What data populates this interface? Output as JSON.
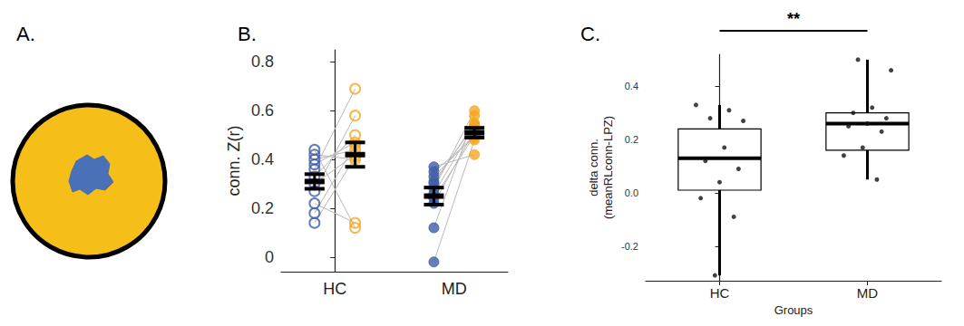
{
  "chart_data": [
    {
      "title": "A.",
      "type": "illustration",
      "colors": [
        "#f6be18",
        "#4a70b8"
      ]
    },
    {
      "title": "B.",
      "type": "paired_scatter",
      "categories": [
        "HC",
        "MD"
      ],
      "y_label": "conn. Z(r)",
      "ylim": [
        -0.06,
        0.85
      ],
      "yticks": [
        0,
        0.2,
        0.4,
        0.6,
        0.8
      ],
      "grid": false,
      "groups": [
        {
          "category": "HC",
          "marker": "open",
          "series": [
            {
              "color": "#3f5ca8",
              "values": [
                0.36,
                0.27,
                0.18,
                0.14,
                0.33,
                0.3,
                0.38,
                0.4,
                0.42,
                0.22,
                0.44
              ],
              "mean": 0.31,
              "error": 0.03
            },
            {
              "color": "#f5a623",
              "values": [
                0.69,
                0.58,
                0.46,
                0.41,
                0.5,
                0.42,
                0.47,
                0.44,
                0.4,
                0.14,
                0.12
              ],
              "mean": 0.42,
              "error": 0.05
            }
          ]
        },
        {
          "category": "MD",
          "marker": "filled",
          "series": [
            {
              "color": "#3f5ca8",
              "values": [
                -0.02,
                0.12,
                0.28,
                0.22,
                0.26,
                0.24,
                0.3,
                0.31,
                0.33,
                0.35,
                0.37
              ],
              "mean": 0.25,
              "error": 0.035
            },
            {
              "color": "#f5a623",
              "values": [
                0.48,
                0.58,
                0.6,
                0.52,
                0.54,
                0.5,
                0.55,
                0.54,
                0.5,
                0.49,
                0.42
              ],
              "mean": 0.51,
              "error": 0.02
            }
          ]
        }
      ]
    },
    {
      "title": "C.",
      "type": "boxplot",
      "categories": [
        "HC",
        "MD"
      ],
      "x_label": "Groups",
      "y_label": "delta conn.\n(meanRLconn-LPZ)",
      "ylim": [
        -0.33,
        0.52
      ],
      "yticks": [
        -0.2,
        {
          "value": 0,
          "label": "0.0"
        },
        0.2,
        0.4
      ],
      "grid": false,
      "boxes": [
        [
          -0.31,
          0.01,
          0.13,
          0.24,
          0.33
        ],
        [
          0.05,
          0.16,
          0.26,
          0.3,
          0.5
        ]
      ],
      "points": [
        [
          0.33,
          0.31,
          0.28,
          0.27,
          0.17,
          0.12,
          0.09,
          0.04,
          -0.02,
          -0.09,
          -0.31
        ],
        [
          0.5,
          0.46,
          0.32,
          0.3,
          0.28,
          0.26,
          0.25,
          0.23,
          0.17,
          0.14,
          0.05
        ]
      ],
      "annotation": "**"
    }
  ]
}
